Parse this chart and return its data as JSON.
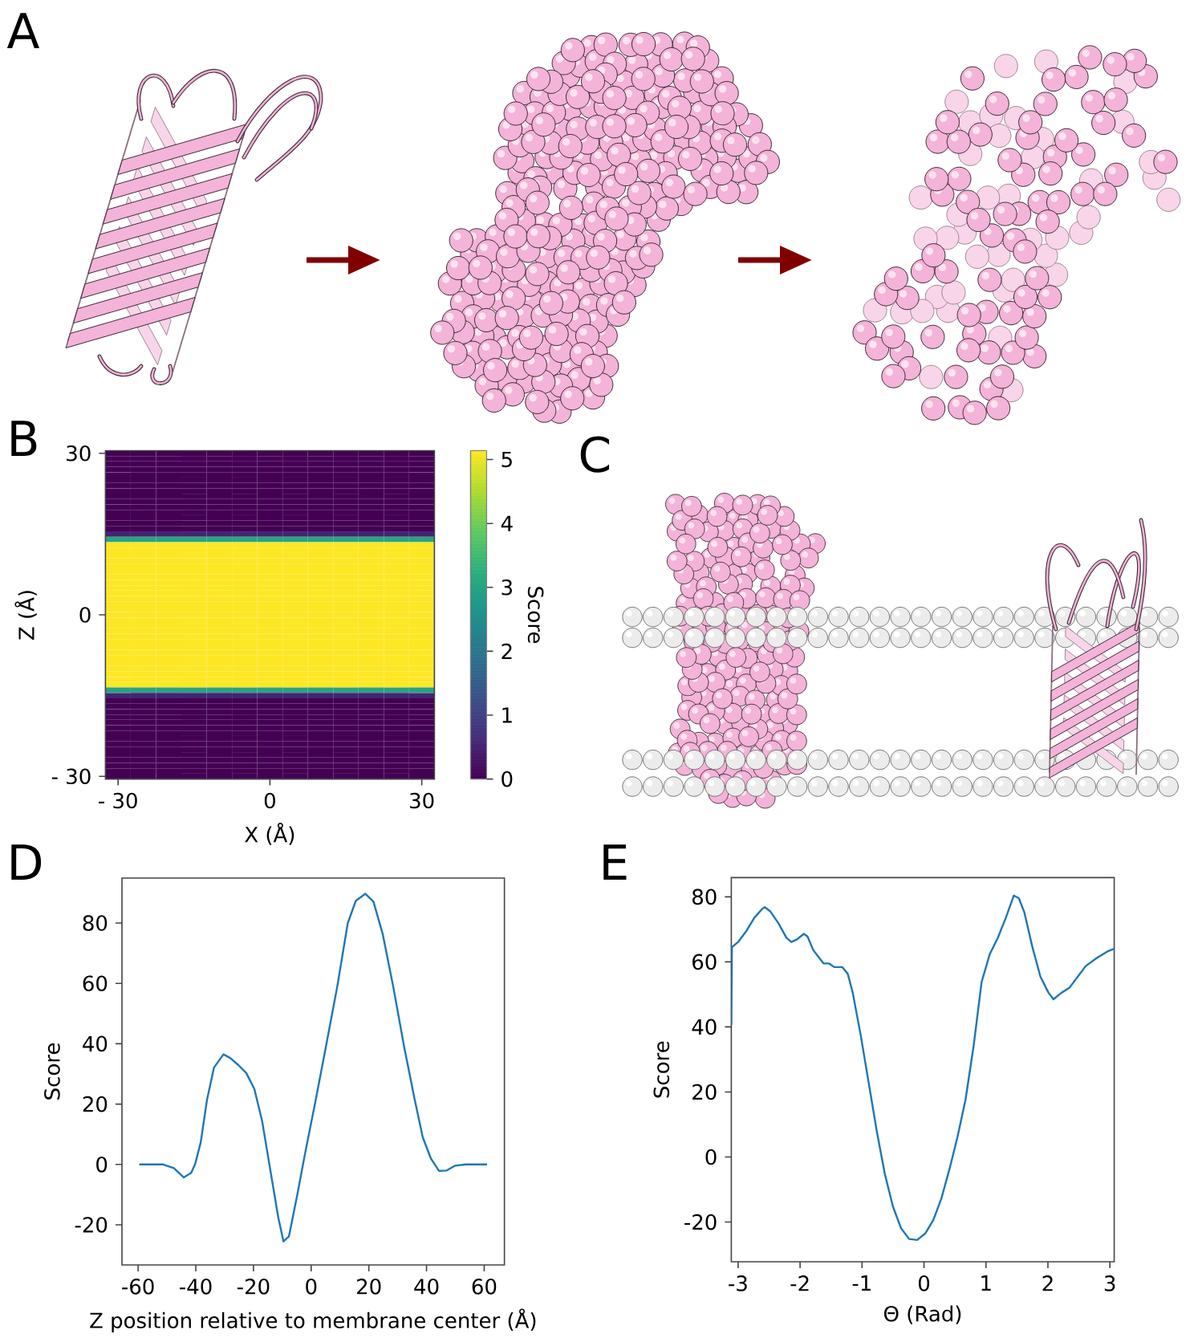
{
  "chart_data": [
    {
      "type": "other",
      "title": "A"
    },
    {
      "type": "heatmap",
      "title": "B",
      "xlabel": "X (Å)",
      "ylabel": "Z (Å)",
      "clabel": "Score",
      "categories": [
        "- 30",
        null,
        null,
        null,
        null,
        null,
        "0",
        null,
        null,
        null,
        null,
        null,
        "30"
      ],
      "y_categories": [
        "30",
        null,
        null,
        null,
        null,
        null,
        null,
        null,
        null,
        null,
        null,
        null,
        null,
        null,
        null,
        null,
        null,
        null,
        null,
        null,
        null,
        null,
        null,
        null,
        null,
        null,
        null,
        null,
        null,
        null,
        "0",
        null,
        null,
        null,
        null,
        null,
        null,
        null,
        null,
        null,
        null,
        null,
        null,
        null,
        null,
        null,
        null,
        null,
        null,
        null,
        null,
        null,
        null,
        null,
        null,
        null,
        null,
        null,
        null,
        null,
        "- 30"
      ],
      "cells": [
        [
          0,
          0,
          0,
          0,
          0,
          0,
          0,
          0,
          0,
          0,
          0,
          0,
          0
        ],
        [
          0,
          0,
          0,
          0,
          0,
          0,
          0,
          0,
          0,
          0,
          0,
          0,
          0
        ],
        [
          0,
          0,
          0,
          0,
          0,
          0,
          0,
          0,
          0,
          0,
          0,
          0,
          0
        ],
        [
          0,
          0,
          0,
          0,
          0,
          0,
          0,
          0,
          0,
          0,
          0,
          0,
          0
        ],
        [
          0,
          0,
          0,
          0,
          0,
          0,
          0,
          0,
          0,
          0,
          0,
          0,
          0
        ],
        [
          0,
          0,
          0,
          0,
          0,
          0,
          0,
          0,
          0,
          0,
          0,
          0,
          0
        ],
        [
          0,
          0,
          0,
          0,
          0,
          0,
          0,
          0,
          0,
          0,
          0,
          0,
          0
        ],
        [
          0,
          0,
          0,
          0,
          0,
          0,
          0,
          0,
          0,
          0,
          0,
          0,
          0
        ],
        [
          0,
          0,
          0,
          0,
          0,
          0,
          0,
          0,
          0,
          0,
          0,
          0,
          0
        ],
        [
          0,
          0,
          0,
          0,
          0,
          0,
          0,
          0,
          0,
          0,
          0,
          0,
          0
        ],
        [
          0,
          0,
          0,
          0,
          0,
          0,
          0,
          0,
          0,
          0,
          0,
          0,
          0
        ],
        [
          0,
          0,
          0,
          0,
          0,
          0,
          0,
          0,
          0,
          0,
          0,
          0,
          0
        ],
        [
          0,
          0,
          0,
          0,
          0,
          0,
          0,
          0,
          0,
          0,
          0,
          0,
          0
        ],
        [
          0,
          0,
          0,
          0,
          0,
          0,
          0,
          0,
          0,
          0,
          0,
          0,
          0
        ],
        [
          0,
          0,
          0,
          0,
          0,
          0,
          0,
          0,
          0,
          0,
          0,
          0,
          0
        ],
        [
          0.5,
          0.5,
          0.5,
          0.5,
          0.5,
          0.5,
          0.5,
          0.5,
          0.5,
          0.5,
          0.5,
          0.5,
          0.5
        ],
        [
          3,
          3,
          3,
          3,
          3,
          3,
          3,
          3,
          3,
          3,
          3,
          3,
          3
        ],
        [
          5.14,
          5.14,
          5.14,
          5.14,
          5.14,
          5.14,
          5.14,
          5.14,
          5.14,
          5.14,
          5.14,
          5.14,
          5.14
        ],
        [
          5.14,
          5.14,
          5.14,
          5.14,
          5.14,
          5.14,
          5.14,
          5.14,
          5.14,
          5.14,
          5.14,
          5.14,
          5.14
        ],
        [
          5.14,
          5.14,
          5.14,
          5.14,
          5.14,
          5.14,
          5.14,
          5.14,
          5.14,
          5.14,
          5.14,
          5.14,
          5.14
        ],
        [
          5.14,
          5.14,
          5.14,
          5.14,
          5.14,
          5.14,
          5.14,
          5.14,
          5.14,
          5.14,
          5.14,
          5.14,
          5.14
        ],
        [
          5.14,
          5.14,
          5.14,
          5.14,
          5.14,
          5.14,
          5.14,
          5.14,
          5.14,
          5.14,
          5.14,
          5.14,
          5.14
        ],
        [
          5.14,
          5.14,
          5.14,
          5.14,
          5.14,
          5.14,
          5.14,
          5.14,
          5.14,
          5.14,
          5.14,
          5.14,
          5.14
        ],
        [
          5.14,
          5.14,
          5.14,
          5.14,
          5.14,
          5.14,
          5.14,
          5.14,
          5.14,
          5.14,
          5.14,
          5.14,
          5.14
        ],
        [
          5.14,
          5.14,
          5.14,
          5.14,
          5.14,
          5.14,
          5.14,
          5.14,
          5.14,
          5.14,
          5.14,
          5.14,
          5.14
        ],
        [
          5.14,
          5.14,
          5.14,
          5.14,
          5.14,
          5.14,
          5.14,
          5.14,
          5.14,
          5.14,
          5.14,
          5.14,
          5.14
        ],
        [
          5.14,
          5.14,
          5.14,
          5.14,
          5.14,
          5.14,
          5.14,
          5.14,
          5.14,
          5.14,
          5.14,
          5.14,
          5.14
        ],
        [
          5.14,
          5.14,
          5.14,
          5.14,
          5.14,
          5.14,
          5.14,
          5.14,
          5.14,
          5.14,
          5.14,
          5.14,
          5.14
        ],
        [
          5.14,
          5.14,
          5.14,
          5.14,
          5.14,
          5.14,
          5.14,
          5.14,
          5.14,
          5.14,
          5.14,
          5.14,
          5.14
        ],
        [
          5.14,
          5.14,
          5.14,
          5.14,
          5.14,
          5.14,
          5.14,
          5.14,
          5.14,
          5.14,
          5.14,
          5.14,
          5.14
        ],
        [
          5.14,
          5.14,
          5.14,
          5.14,
          5.14,
          5.14,
          5.14,
          5.14,
          5.14,
          5.14,
          5.14,
          5.14,
          5.14
        ],
        [
          5.14,
          5.14,
          5.14,
          5.14,
          5.14,
          5.14,
          5.14,
          5.14,
          5.14,
          5.14,
          5.14,
          5.14,
          5.14
        ],
        [
          5.14,
          5.14,
          5.14,
          5.14,
          5.14,
          5.14,
          5.14,
          5.14,
          5.14,
          5.14,
          5.14,
          5.14,
          5.14
        ],
        [
          5.14,
          5.14,
          5.14,
          5.14,
          5.14,
          5.14,
          5.14,
          5.14,
          5.14,
          5.14,
          5.14,
          5.14,
          5.14
        ],
        [
          5.14,
          5.14,
          5.14,
          5.14,
          5.14,
          5.14,
          5.14,
          5.14,
          5.14,
          5.14,
          5.14,
          5.14,
          5.14
        ],
        [
          5.14,
          5.14,
          5.14,
          5.14,
          5.14,
          5.14,
          5.14,
          5.14,
          5.14,
          5.14,
          5.14,
          5.14,
          5.14
        ],
        [
          5.14,
          5.14,
          5.14,
          5.14,
          5.14,
          5.14,
          5.14,
          5.14,
          5.14,
          5.14,
          5.14,
          5.14,
          5.14
        ],
        [
          5.14,
          5.14,
          5.14,
          5.14,
          5.14,
          5.14,
          5.14,
          5.14,
          5.14,
          5.14,
          5.14,
          5.14,
          5.14
        ],
        [
          5.14,
          5.14,
          5.14,
          5.14,
          5.14,
          5.14,
          5.14,
          5.14,
          5.14,
          5.14,
          5.14,
          5.14,
          5.14
        ],
        [
          5.14,
          5.14,
          5.14,
          5.14,
          5.14,
          5.14,
          5.14,
          5.14,
          5.14,
          5.14,
          5.14,
          5.14,
          5.14
        ],
        [
          5.14,
          5.14,
          5.14,
          5.14,
          5.14,
          5.14,
          5.14,
          5.14,
          5.14,
          5.14,
          5.14,
          5.14,
          5.14
        ],
        [
          5.14,
          5.14,
          5.14,
          5.14,
          5.14,
          5.14,
          5.14,
          5.14,
          5.14,
          5.14,
          5.14,
          5.14,
          5.14
        ],
        [
          5.14,
          5.14,
          5.14,
          5.14,
          5.14,
          5.14,
          5.14,
          5.14,
          5.14,
          5.14,
          5.14,
          5.14,
          5.14
        ],
        [
          5.14,
          5.14,
          5.14,
          5.14,
          5.14,
          5.14,
          5.14,
          5.14,
          5.14,
          5.14,
          5.14,
          5.14,
          5.14
        ],
        [
          3,
          3,
          3,
          3,
          3,
          3,
          3,
          3,
          3,
          3,
          3,
          3,
          3
        ],
        [
          0.5,
          0.5,
          0.5,
          0.5,
          0.5,
          0.5,
          0.5,
          0.5,
          0.5,
          0.5,
          0.5,
          0.5,
          0.5
        ],
        [
          0,
          0,
          0,
          0,
          0,
          0,
          0,
          0,
          0,
          0,
          0,
          0,
          0
        ],
        [
          0,
          0,
          0,
          0,
          0,
          0,
          0,
          0,
          0,
          0,
          0,
          0,
          0
        ],
        [
          0,
          0,
          0,
          0,
          0,
          0,
          0,
          0,
          0,
          0,
          0,
          0,
          0
        ],
        [
          0,
          0,
          0,
          0,
          0,
          0,
          0,
          0,
          0,
          0,
          0,
          0,
          0
        ],
        [
          0,
          0,
          0,
          0,
          0,
          0,
          0,
          0,
          0,
          0,
          0,
          0,
          0
        ],
        [
          0,
          0,
          0,
          0,
          0,
          0,
          0,
          0,
          0,
          0,
          0,
          0,
          0
        ],
        [
          0,
          0,
          0,
          0,
          0,
          0,
          0,
          0,
          0,
          0,
          0,
          0,
          0
        ],
        [
          0,
          0,
          0,
          0,
          0,
          0,
          0,
          0,
          0,
          0,
          0,
          0,
          0
        ],
        [
          0,
          0,
          0,
          0,
          0,
          0,
          0,
          0,
          0,
          0,
          0,
          0,
          0
        ],
        [
          0,
          0,
          0,
          0,
          0,
          0,
          0,
          0,
          0,
          0,
          0,
          0,
          0
        ],
        [
          0,
          0,
          0,
          0,
          0,
          0,
          0,
          0,
          0,
          0,
          0,
          0,
          0
        ],
        [
          0,
          0,
          0,
          0,
          0,
          0,
          0,
          0,
          0,
          0,
          0,
          0,
          0
        ],
        [
          0,
          0,
          0,
          0,
          0,
          0,
          0,
          0,
          0,
          0,
          0,
          0,
          0
        ],
        [
          0,
          0,
          0,
          0,
          0,
          0,
          0,
          0,
          0,
          0,
          0,
          0,
          0
        ],
        [
          0,
          0,
          0,
          0,
          0,
          0,
          0,
          0,
          0,
          0,
          0,
          0,
          0
        ]
      ],
      "clim": [
        0,
        5.14
      ],
      "cticks": [
        0,
        1,
        2,
        3,
        4,
        5
      ]
    },
    {
      "type": "other",
      "title": "C"
    },
    {
      "type": "line",
      "title": "D",
      "xlabel": "Z position relative to membrane center (Å)",
      "ylabel": "Score",
      "x": [
        -59.6,
        -51.3,
        -47.6,
        -44.2,
        -41.6,
        -40.2,
        -38.3,
        -36.1,
        -33.7,
        -30.4,
        -28.1,
        -25.3,
        -22.5,
        -19.7,
        -17,
        -14.2,
        -11.4,
        -9.6,
        -7.7,
        -4.9,
        -2.1,
        1.6,
        5.3,
        9,
        12.7,
        15.5,
        18.8,
        21.6,
        24.8,
        28.5,
        32.2,
        35.9,
        38.7,
        41.5,
        44.3,
        47,
        49.9,
        53.6,
        61
      ],
      "series": [
        {
          "color": "#1f77b4",
          "values": [
            0,
            0,
            -1.2,
            -4.3,
            -2.8,
            0.2,
            7.3,
            21.5,
            32.1,
            36.5,
            35.3,
            33,
            30.3,
            25,
            14.4,
            -1.6,
            -17.6,
            -25.5,
            -23.8,
            -10.5,
            3.7,
            21.5,
            40,
            58.7,
            80,
            87.4,
            89.7,
            87.1,
            76.4,
            58.7,
            39.2,
            21.5,
            9,
            2,
            -2.1,
            -2,
            -0.4,
            0,
            0
          ]
        }
      ],
      "xlim": [
        -65.6,
        67
      ],
      "ylim": [
        -33.3,
        94.9
      ],
      "xticks": [
        -60,
        -40,
        -20,
        0,
        20,
        40,
        60
      ],
      "yticks": [
        -20,
        0,
        20,
        40,
        60,
        80
      ]
    },
    {
      "type": "line",
      "title": "E",
      "xlabel": "Θ (Rad)",
      "ylabel": "Score",
      "x": [
        -3.11,
        -3.1,
        -3.0,
        -2.87,
        -2.74,
        -2.61,
        -2.57,
        -2.48,
        -2.35,
        -2.22,
        -2.14,
        -2.05,
        -1.94,
        -1.88,
        -1.79,
        -1.71,
        -1.62,
        -1.53,
        -1.45,
        -1.32,
        -1.23,
        -1.15,
        -1.02,
        -0.89,
        -0.76,
        -0.63,
        -0.5,
        -0.37,
        -0.24,
        -0.11,
        0.02,
        0.15,
        0.28,
        0.41,
        0.54,
        0.67,
        0.8,
        0.93,
        1.06,
        1.19,
        1.32,
        1.45,
        1.53,
        1.62,
        1.75,
        1.88,
        2.01,
        2.09,
        2.22,
        2.35,
        2.48,
        2.61,
        2.79,
        2.96,
        3.07
      ],
      "series": [
        {
          "color": "#1f77b4",
          "values": [
            40.6,
            64.5,
            66.1,
            69.4,
            73.5,
            76.3,
            76.8,
            75.5,
            71.9,
            67.4,
            66.1,
            66.9,
            68.6,
            67.8,
            63.7,
            61.7,
            59.5,
            59.5,
            58.4,
            58.4,
            56.3,
            50.5,
            37.3,
            22.5,
            7.7,
            -5.4,
            -15.3,
            -21.9,
            -25.2,
            -25.5,
            -23.5,
            -19.4,
            -12.8,
            -3.8,
            6.1,
            17.6,
            34,
            53.8,
            62.3,
            67.3,
            73.5,
            80.4,
            79.6,
            75.2,
            64.5,
            55.4,
            50.5,
            48.5,
            50.5,
            52.1,
            55.4,
            58.7,
            61.2,
            63.2,
            64
          ]
        }
      ],
      "xlim": [
        -3.11,
        3.07
      ],
      "ylim": [
        -32.2,
        85.9
      ],
      "xticks": [
        -3,
        -2,
        -1,
        0,
        1,
        2,
        3
      ],
      "yticks": [
        -20,
        0,
        20,
        40,
        60,
        80
      ]
    }
  ]
}
